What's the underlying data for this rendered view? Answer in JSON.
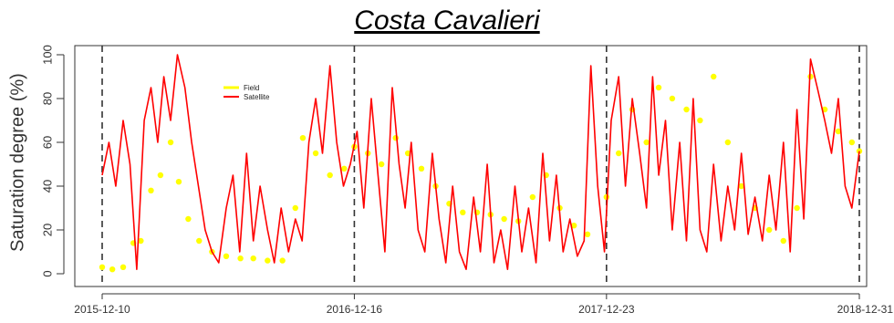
{
  "chart_data": {
    "type": "line",
    "title": "Costa Cavalieri",
    "ylabel": "Saturation degree (%)",
    "xlabel": "",
    "ylim": [
      0,
      100
    ],
    "yticks": [
      0,
      20,
      40,
      60,
      80,
      100
    ],
    "xlim": [
      "2015-12-10",
      "2018-12-31"
    ],
    "xticks": [
      "2015-12-10",
      "2016-12-16",
      "2017-12-23",
      "2018-12-31"
    ],
    "vlines": [
      "2015-12-10",
      "2016-12-16",
      "2017-12-23",
      "2018-12-31"
    ],
    "grid": false,
    "legend_position": "top-left",
    "series": [
      {
        "name": "Field",
        "color": "#ffff00",
        "style": "points",
        "x": [
          "2015-12-10",
          "2015-12-25",
          "2016-01-10",
          "2016-01-25",
          "2016-02-05",
          "2016-02-20",
          "2016-03-05",
          "2016-03-20",
          "2016-04-01",
          "2016-04-15",
          "2016-05-01",
          "2016-05-20",
          "2016-06-10",
          "2016-07-01",
          "2016-07-20",
          "2016-08-10",
          "2016-09-01",
          "2016-09-20",
          "2016-10-01",
          "2016-10-20",
          "2016-11-10",
          "2016-12-01",
          "2016-12-16",
          "2017-01-05",
          "2017-01-25",
          "2017-02-15",
          "2017-03-05",
          "2017-03-25",
          "2017-04-15",
          "2017-05-05",
          "2017-05-25",
          "2017-06-15",
          "2017-07-05",
          "2017-07-25",
          "2017-08-15",
          "2017-09-05",
          "2017-09-25",
          "2017-10-15",
          "2017-11-05",
          "2017-11-25",
          "2017-12-23",
          "2018-01-10",
          "2018-01-30",
          "2018-02-20",
          "2018-03-10",
          "2018-03-30",
          "2018-04-20",
          "2018-05-10",
          "2018-05-30",
          "2018-06-20",
          "2018-07-10",
          "2018-07-30",
          "2018-08-20",
          "2018-09-10",
          "2018-09-30",
          "2018-10-20",
          "2018-11-10",
          "2018-11-30",
          "2018-12-20",
          "2018-12-31"
        ],
        "values": [
          3,
          2,
          3,
          14,
          15,
          38,
          45,
          60,
          42,
          25,
          15,
          10,
          8,
          7,
          7,
          6,
          6,
          30,
          62,
          55,
          45,
          48,
          58,
          55,
          50,
          62,
          55,
          48,
          40,
          32,
          28,
          28,
          27,
          25,
          24,
          35,
          45,
          30,
          22,
          18,
          35,
          55,
          75,
          60,
          85,
          80,
          75,
          70,
          90,
          60,
          40,
          30,
          20,
          15,
          30,
          90,
          75,
          65,
          60,
          56
        ]
      },
      {
        "name": "Satellite",
        "color": "#ff0000",
        "style": "line",
        "x": [
          "2015-12-10",
          "2015-12-20",
          "2015-12-30",
          "2016-01-10",
          "2016-01-20",
          "2016-01-30",
          "2016-02-10",
          "2016-02-20",
          "2016-03-01",
          "2016-03-10",
          "2016-03-20",
          "2016-03-30",
          "2016-04-10",
          "2016-04-20",
          "2016-04-30",
          "2016-05-10",
          "2016-05-20",
          "2016-05-30",
          "2016-06-10",
          "2016-06-20",
          "2016-06-30",
          "2016-07-10",
          "2016-07-20",
          "2016-07-30",
          "2016-08-10",
          "2016-08-20",
          "2016-08-30",
          "2016-09-10",
          "2016-09-20",
          "2016-09-30",
          "2016-10-10",
          "2016-10-20",
          "2016-10-30",
          "2016-11-10",
          "2016-11-20",
          "2016-11-30",
          "2016-12-10",
          "2016-12-20",
          "2016-12-30",
          "2017-01-10",
          "2017-01-20",
          "2017-01-30",
          "2017-02-10",
          "2017-02-20",
          "2017-03-01",
          "2017-03-10",
          "2017-03-20",
          "2017-03-30",
          "2017-04-10",
          "2017-04-20",
          "2017-04-30",
          "2017-05-10",
          "2017-05-20",
          "2017-05-30",
          "2017-06-10",
          "2017-06-20",
          "2017-06-30",
          "2017-07-10",
          "2017-07-20",
          "2017-07-30",
          "2017-08-10",
          "2017-08-20",
          "2017-08-30",
          "2017-09-10",
          "2017-09-20",
          "2017-09-30",
          "2017-10-10",
          "2017-10-20",
          "2017-10-30",
          "2017-11-10",
          "2017-11-20",
          "2017-11-30",
          "2017-12-10",
          "2017-12-20",
          "2017-12-30",
          "2018-01-10",
          "2018-01-20",
          "2018-01-30",
          "2018-02-10",
          "2018-02-20",
          "2018-03-01",
          "2018-03-10",
          "2018-03-20",
          "2018-03-30",
          "2018-04-10",
          "2018-04-20",
          "2018-04-30",
          "2018-05-10",
          "2018-05-20",
          "2018-05-30",
          "2018-06-10",
          "2018-06-20",
          "2018-06-30",
          "2018-07-10",
          "2018-07-20",
          "2018-07-30",
          "2018-08-10",
          "2018-08-20",
          "2018-08-30",
          "2018-09-10",
          "2018-09-20",
          "2018-09-30",
          "2018-10-10",
          "2018-10-20",
          "2018-10-30",
          "2018-11-10",
          "2018-11-20",
          "2018-11-30",
          "2018-12-10",
          "2018-12-20",
          "2018-12-31"
        ],
        "values": [
          45,
          60,
          40,
          70,
          50,
          2,
          70,
          85,
          60,
          90,
          70,
          100,
          85,
          60,
          40,
          20,
          10,
          5,
          30,
          45,
          10,
          55,
          15,
          40,
          20,
          5,
          30,
          10,
          25,
          15,
          60,
          80,
          55,
          95,
          60,
          40,
          50,
          65,
          30,
          80,
          45,
          10,
          85,
          50,
          30,
          60,
          20,
          10,
          55,
          25,
          5,
          40,
          10,
          2,
          35,
          10,
          50,
          5,
          20,
          2,
          40,
          10,
          30,
          5,
          55,
          15,
          45,
          10,
          25,
          8,
          15,
          95,
          40,
          10,
          70,
          90,
          40,
          80,
          55,
          30,
          90,
          45,
          70,
          20,
          60,
          15,
          80,
          20,
          10,
          50,
          15,
          40,
          20,
          55,
          18,
          35,
          15,
          45,
          20,
          60,
          10,
          75,
          25,
          98,
          85,
          70,
          55,
          80,
          40,
          30,
          56
        ]
      }
    ]
  }
}
